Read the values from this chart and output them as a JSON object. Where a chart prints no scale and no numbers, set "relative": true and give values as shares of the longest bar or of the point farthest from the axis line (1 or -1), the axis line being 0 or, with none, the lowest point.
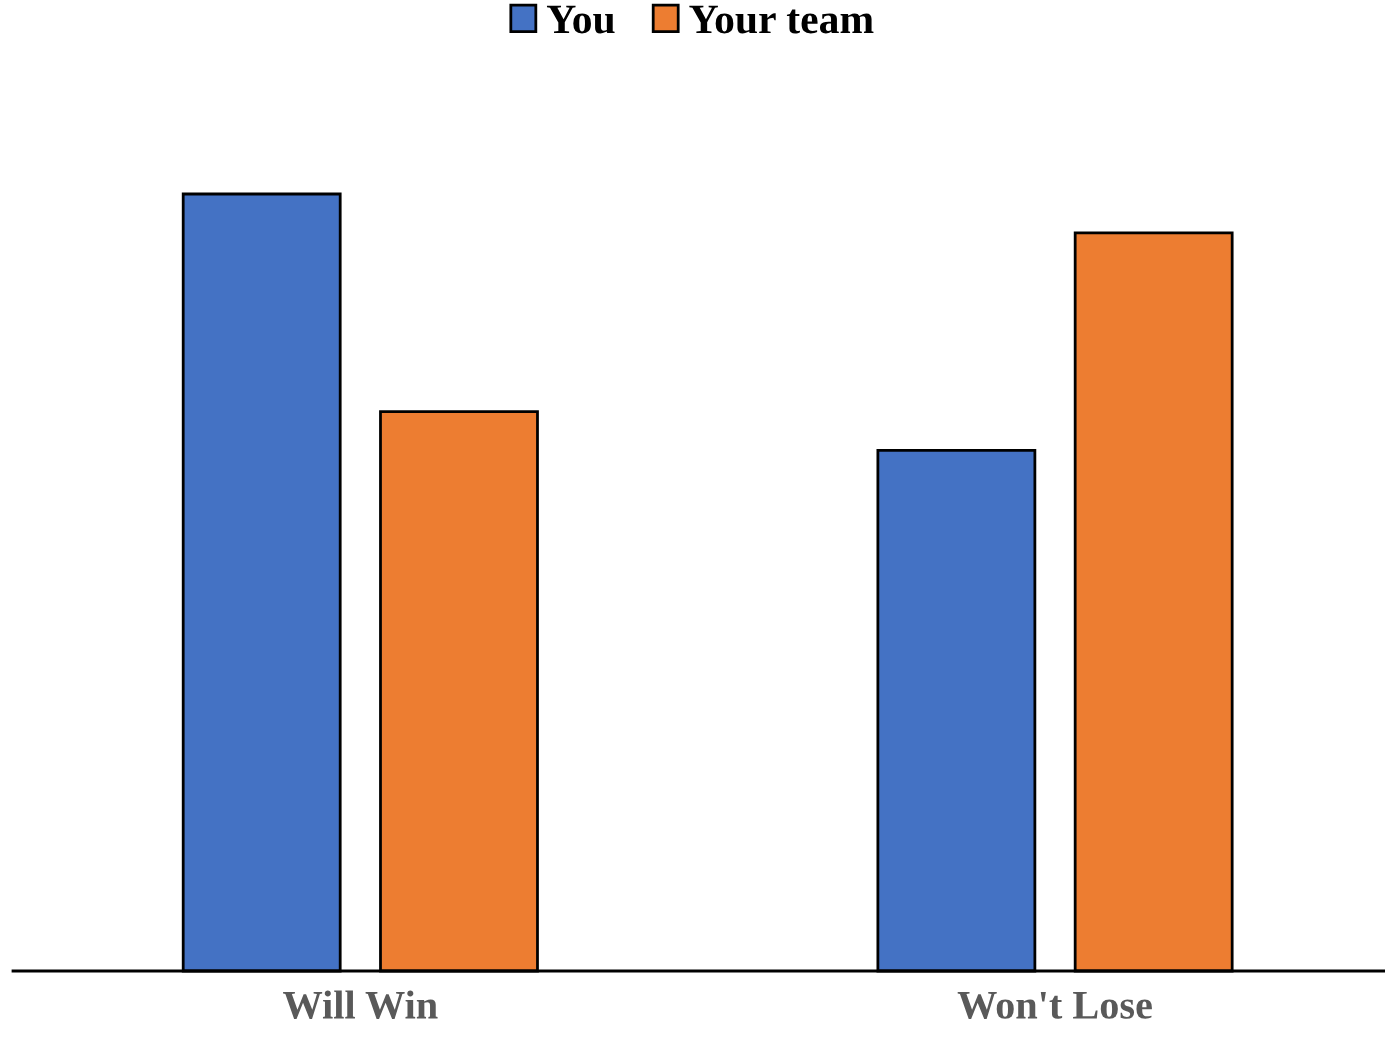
{
  "chart_data": {
    "type": "bar",
    "relative": true,
    "categories": [
      "Will Win",
      "Won't Lose"
    ],
    "series": [
      {
        "name": "You",
        "color": "#4472c4",
        "values": [
          1,
          0.67
        ]
      },
      {
        "name": "Your team",
        "color": "#ed7d31",
        "values": [
          0.72,
          0.95
        ]
      }
    ],
    "legend": "top"
  }
}
